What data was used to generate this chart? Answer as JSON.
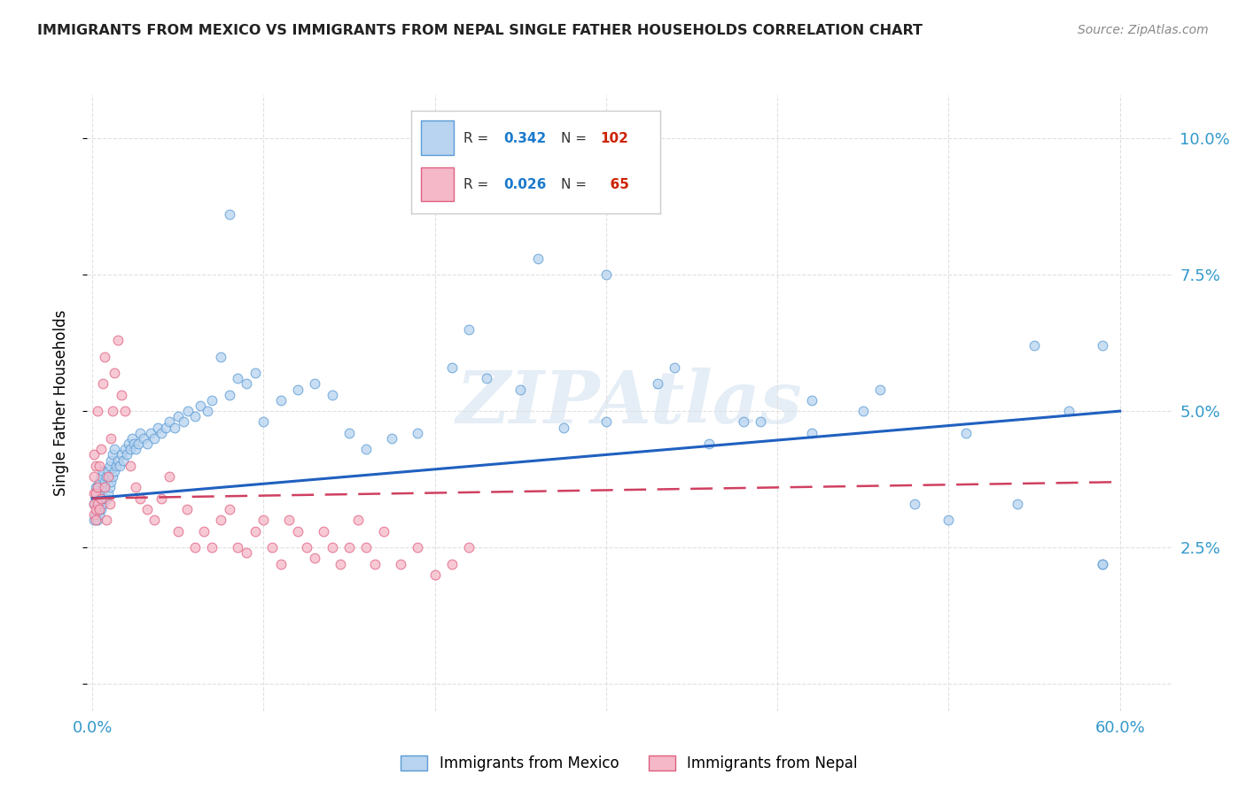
{
  "title": "IMMIGRANTS FROM MEXICO VS IMMIGRANTS FROM NEPAL SINGLE FATHER HOUSEHOLDS CORRELATION CHART",
  "source": "Source: ZipAtlas.com",
  "xlabel_ticks": [
    "0.0%",
    "",
    "",
    "",
    "",
    "",
    "60.0%"
  ],
  "xlabel_vals": [
    0.0,
    0.1,
    0.2,
    0.3,
    0.4,
    0.5,
    0.6
  ],
  "ylabel_ticks_right": [
    "10.0%",
    "7.5%",
    "5.0%",
    "2.5%",
    ""
  ],
  "ylabel_vals": [
    0.1,
    0.075,
    0.05,
    0.025,
    0.0
  ],
  "xlim": [
    -0.003,
    0.63
  ],
  "ylim": [
    -0.005,
    0.108
  ],
  "mexico_R": 0.342,
  "mexico_N": 102,
  "nepal_R": 0.026,
  "nepal_N": 65,
  "mexico_color": "#b8d4f0",
  "mexico_edge_color": "#5b9bd5",
  "nepal_color": "#f5b8c8",
  "nepal_edge_color": "#e06080",
  "watermark": "ZIPAtlas",
  "legend_R_color": "#1a7acc",
  "legend_N_color": "#cc2200",
  "mexico_line_color": "#2060c0",
  "nepal_line_color": "#d04060",
  "mexico_scatter_x": [
    0.001,
    0.001,
    0.002,
    0.002,
    0.002,
    0.003,
    0.003,
    0.003,
    0.004,
    0.004,
    0.004,
    0.005,
    0.005,
    0.005,
    0.006,
    0.006,
    0.006,
    0.007,
    0.007,
    0.008,
    0.008,
    0.009,
    0.009,
    0.01,
    0.01,
    0.011,
    0.011,
    0.012,
    0.012,
    0.013,
    0.013,
    0.014,
    0.015,
    0.016,
    0.017,
    0.018,
    0.019,
    0.02,
    0.021,
    0.022,
    0.023,
    0.024,
    0.025,
    0.027,
    0.028,
    0.03,
    0.032,
    0.034,
    0.036,
    0.038,
    0.04,
    0.043,
    0.045,
    0.048,
    0.05,
    0.053,
    0.056,
    0.06,
    0.063,
    0.067,
    0.07,
    0.075,
    0.08,
    0.085,
    0.09,
    0.095,
    0.1,
    0.11,
    0.12,
    0.13,
    0.14,
    0.15,
    0.16,
    0.175,
    0.19,
    0.21,
    0.23,
    0.25,
    0.275,
    0.3,
    0.33,
    0.36,
    0.39,
    0.42,
    0.45,
    0.48,
    0.51,
    0.54,
    0.57,
    0.59,
    0.22,
    0.26,
    0.3,
    0.34,
    0.38,
    0.42,
    0.46,
    0.5,
    0.55,
    0.59,
    0.59,
    0.08
  ],
  "mexico_scatter_y": [
    0.033,
    0.03,
    0.031,
    0.034,
    0.036,
    0.03,
    0.033,
    0.036,
    0.031,
    0.034,
    0.037,
    0.032,
    0.035,
    0.038,
    0.033,
    0.036,
    0.039,
    0.034,
    0.037,
    0.034,
    0.038,
    0.035,
    0.039,
    0.036,
    0.04,
    0.037,
    0.041,
    0.038,
    0.042,
    0.039,
    0.043,
    0.04,
    0.041,
    0.04,
    0.042,
    0.041,
    0.043,
    0.042,
    0.044,
    0.043,
    0.045,
    0.044,
    0.043,
    0.044,
    0.046,
    0.045,
    0.044,
    0.046,
    0.045,
    0.047,
    0.046,
    0.047,
    0.048,
    0.047,
    0.049,
    0.048,
    0.05,
    0.049,
    0.051,
    0.05,
    0.052,
    0.06,
    0.053,
    0.056,
    0.055,
    0.057,
    0.048,
    0.052,
    0.054,
    0.055,
    0.053,
    0.046,
    0.043,
    0.045,
    0.046,
    0.058,
    0.056,
    0.054,
    0.047,
    0.048,
    0.055,
    0.044,
    0.048,
    0.046,
    0.05,
    0.033,
    0.046,
    0.033,
    0.05,
    0.022,
    0.065,
    0.078,
    0.075,
    0.058,
    0.048,
    0.052,
    0.054,
    0.03,
    0.062,
    0.062,
    0.022,
    0.086
  ],
  "nepal_scatter_x": [
    0.001,
    0.001,
    0.001,
    0.001,
    0.001,
    0.002,
    0.002,
    0.002,
    0.002,
    0.003,
    0.003,
    0.003,
    0.004,
    0.004,
    0.005,
    0.005,
    0.006,
    0.007,
    0.007,
    0.008,
    0.009,
    0.01,
    0.011,
    0.012,
    0.013,
    0.015,
    0.017,
    0.019,
    0.022,
    0.025,
    0.028,
    0.032,
    0.036,
    0.04,
    0.045,
    0.05,
    0.055,
    0.06,
    0.065,
    0.07,
    0.075,
    0.08,
    0.085,
    0.09,
    0.095,
    0.1,
    0.105,
    0.11,
    0.115,
    0.12,
    0.125,
    0.13,
    0.135,
    0.14,
    0.145,
    0.15,
    0.155,
    0.16,
    0.165,
    0.17,
    0.18,
    0.19,
    0.2,
    0.21,
    0.22
  ],
  "nepal_scatter_y": [
    0.031,
    0.033,
    0.035,
    0.038,
    0.042,
    0.03,
    0.032,
    0.035,
    0.04,
    0.033,
    0.036,
    0.05,
    0.032,
    0.04,
    0.034,
    0.043,
    0.055,
    0.036,
    0.06,
    0.03,
    0.038,
    0.033,
    0.045,
    0.05,
    0.057,
    0.063,
    0.053,
    0.05,
    0.04,
    0.036,
    0.034,
    0.032,
    0.03,
    0.034,
    0.038,
    0.028,
    0.032,
    0.025,
    0.028,
    0.025,
    0.03,
    0.032,
    0.025,
    0.024,
    0.028,
    0.03,
    0.025,
    0.022,
    0.03,
    0.028,
    0.025,
    0.023,
    0.028,
    0.025,
    0.022,
    0.025,
    0.03,
    0.025,
    0.022,
    0.028,
    0.022,
    0.025,
    0.02,
    0.022,
    0.025
  ],
  "mexico_line_x": [
    0.0,
    0.6
  ],
  "mexico_line_y": [
    0.034,
    0.05
  ],
  "nepal_line_x": [
    0.0,
    0.6
  ],
  "nepal_line_y": [
    0.034,
    0.037
  ],
  "background_color": "#ffffff",
  "grid_color": "#e0e0e0",
  "title_color": "#222222",
  "axis_color": "#3399cc",
  "scatter_size": 60,
  "scatter_alpha": 0.75,
  "ylabel": "Single Father Households",
  "legend_bottom_labels": [
    "Immigrants from Mexico",
    "Immigrants from Nepal"
  ]
}
